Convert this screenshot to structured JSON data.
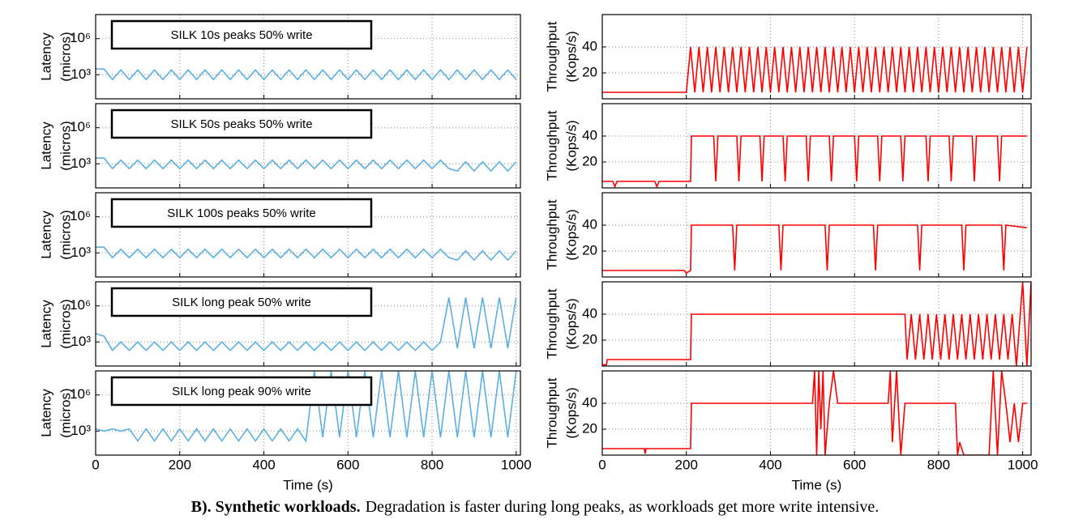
{
  "caption": {
    "bold": "B). Synthetic workloads.",
    "text": "Degradation is faster during long peaks, as workloads get more write intensive."
  },
  "chart_data": [
    {
      "type": "line",
      "title": "SILK 10s peaks 50% write",
      "ylabel": [
        "Latency",
        "(micros)"
      ],
      "color": "#5aafe3",
      "log": true,
      "grid": true,
      "xlim": [
        0,
        1010
      ],
      "xticks": [
        0,
        200,
        400,
        600,
        800,
        1000
      ],
      "ylim": [
        10,
        100000000
      ],
      "yticks": [
        {
          "value": 1000,
          "label": "10³"
        },
        {
          "value": 1000000,
          "label": "10⁶"
        }
      ],
      "x": [
        0,
        20,
        40,
        60,
        80,
        100,
        120,
        140,
        160,
        180,
        200,
        220,
        240,
        260,
        280,
        300,
        320,
        340,
        360,
        380,
        400,
        420,
        440,
        460,
        480,
        500,
        520,
        540,
        560,
        580,
        600,
        620,
        640,
        660,
        680,
        700,
        720,
        740,
        760,
        780,
        800,
        820,
        840,
        860,
        880,
        900,
        920,
        940,
        960,
        980,
        1000
      ],
      "values": [
        3000,
        3000,
        400,
        2500,
        400,
        2500,
        400,
        2500,
        400,
        2500,
        400,
        2500,
        400,
        2500,
        400,
        2500,
        400,
        2500,
        400,
        2500,
        400,
        2500,
        400,
        2500,
        400,
        2500,
        400,
        2500,
        400,
        2500,
        400,
        2500,
        400,
        2500,
        400,
        2500,
        400,
        2500,
        400,
        2500,
        400,
        2500,
        400,
        2500,
        400,
        2500,
        400,
        2500,
        400,
        2500,
        400
      ]
    },
    {
      "type": "line",
      "title": "SILK 50s peaks 50% write",
      "ylabel": [
        "Latency",
        "(micros)"
      ],
      "color": "#5aafe3",
      "log": true,
      "grid": true,
      "xlim": [
        0,
        1010
      ],
      "xticks": [
        0,
        200,
        400,
        600,
        800,
        1000
      ],
      "ylim": [
        10,
        100000000
      ],
      "yticks": [
        {
          "value": 1000,
          "label": "10³"
        },
        {
          "value": 1000000,
          "label": "10⁶"
        }
      ],
      "x": [
        0,
        20,
        40,
        60,
        80,
        100,
        120,
        140,
        160,
        180,
        200,
        220,
        240,
        260,
        280,
        300,
        320,
        340,
        360,
        380,
        400,
        420,
        440,
        460,
        480,
        500,
        520,
        540,
        560,
        580,
        600,
        620,
        640,
        660,
        680,
        700,
        720,
        740,
        760,
        780,
        800,
        820,
        840,
        860,
        880,
        900,
        920,
        940,
        960,
        980,
        1000
      ],
      "values": [
        3000,
        3000,
        400,
        2000,
        400,
        2000,
        400,
        2000,
        400,
        2000,
        400,
        2000,
        400,
        2000,
        400,
        2000,
        400,
        2000,
        400,
        2000,
        400,
        2000,
        400,
        2000,
        400,
        2000,
        400,
        2000,
        400,
        2000,
        400,
        2000,
        400,
        2000,
        400,
        2000,
        400,
        2000,
        400,
        2000,
        400,
        2000,
        400,
        250,
        1500,
        250,
        1500,
        250,
        1500,
        250,
        1500
      ]
    },
    {
      "type": "line",
      "title": "SILK 100s peaks 50% write",
      "ylabel": [
        "Latency",
        "(micros)"
      ],
      "color": "#5aafe3",
      "log": true,
      "grid": true,
      "xlim": [
        0,
        1010
      ],
      "xticks": [
        0,
        200,
        400,
        600,
        800,
        1000
      ],
      "ylim": [
        10,
        100000000
      ],
      "yticks": [
        {
          "value": 1000,
          "label": "10³"
        },
        {
          "value": 1000000,
          "label": "10⁶"
        }
      ],
      "x": [
        0,
        20,
        40,
        60,
        80,
        100,
        120,
        140,
        160,
        180,
        200,
        220,
        240,
        260,
        280,
        300,
        320,
        340,
        360,
        380,
        400,
        420,
        440,
        460,
        480,
        500,
        520,
        540,
        560,
        580,
        600,
        620,
        640,
        660,
        680,
        700,
        720,
        740,
        760,
        780,
        800,
        820,
        840,
        860,
        880,
        900,
        920,
        940,
        960,
        980,
        1000
      ],
      "values": [
        3000,
        3000,
        400,
        2000,
        400,
        2000,
        400,
        2000,
        400,
        2000,
        400,
        2000,
        400,
        2000,
        400,
        2000,
        400,
        2000,
        400,
        2000,
        400,
        2000,
        400,
        2000,
        400,
        2000,
        400,
        2000,
        400,
        2000,
        400,
        2000,
        400,
        2000,
        400,
        2000,
        400,
        2000,
        400,
        2000,
        400,
        2000,
        400,
        250,
        1500,
        250,
        1500,
        250,
        1500,
        250,
        1500
      ]
    },
    {
      "type": "line",
      "title": "SILK long peak 50% write",
      "ylabel": [
        "Latency",
        "(micros)"
      ],
      "color": "#5aafe3",
      "log": true,
      "grid": true,
      "xlim": [
        0,
        1010
      ],
      "xticks": [
        0,
        200,
        400,
        600,
        800,
        1000
      ],
      "ylim": [
        10,
        100000000
      ],
      "yticks": [
        {
          "value": 1000,
          "label": "10³"
        },
        {
          "value": 1000000,
          "label": "10⁶"
        }
      ],
      "x": [
        0,
        20,
        40,
        60,
        80,
        100,
        120,
        140,
        160,
        180,
        200,
        220,
        240,
        260,
        280,
        300,
        320,
        340,
        360,
        380,
        400,
        420,
        440,
        460,
        480,
        500,
        520,
        540,
        560,
        580,
        600,
        620,
        640,
        660,
        680,
        700,
        720,
        740,
        760,
        780,
        800,
        820,
        840,
        860,
        880,
        900,
        920,
        940,
        960,
        980,
        1000
      ],
      "values": [
        5000,
        3000,
        200,
        1000,
        200,
        1000,
        200,
        1000,
        200,
        1000,
        200,
        1000,
        200,
        1000,
        200,
        1000,
        200,
        1000,
        200,
        1000,
        200,
        1000,
        200,
        1000,
        200,
        1000,
        200,
        1000,
        200,
        1000,
        200,
        1000,
        200,
        1000,
        200,
        1000,
        200,
        1000,
        200,
        1000,
        200,
        1000,
        5000000,
        300,
        5000000,
        300,
        5000000,
        300,
        5000000,
        300,
        5000000
      ]
    },
    {
      "type": "line",
      "title": "SILK long peak 90% write",
      "ylabel": [
        "Latency",
        "(micros)"
      ],
      "xlabel": "Time (s)",
      "color": "#5aafe3",
      "log": true,
      "grid": true,
      "xlim": [
        0,
        1010
      ],
      "xticks": [
        0,
        200,
        400,
        600,
        800,
        1000
      ],
      "ylim": [
        10,
        100000000
      ],
      "yticks": [
        {
          "value": 1000,
          "label": "10³"
        },
        {
          "value": 1000000,
          "label": "10⁶"
        }
      ],
      "x": [
        0,
        20,
        40,
        60,
        80,
        100,
        120,
        140,
        160,
        180,
        200,
        220,
        240,
        260,
        280,
        300,
        320,
        340,
        360,
        380,
        400,
        420,
        440,
        460,
        480,
        500,
        520,
        540,
        560,
        580,
        600,
        620,
        640,
        660,
        680,
        700,
        720,
        740,
        760,
        780,
        800,
        820,
        840,
        860,
        880,
        900,
        920,
        940,
        960,
        980,
        1000
      ],
      "values": [
        1500,
        1000,
        1500,
        1000,
        1500,
        150,
        1500,
        150,
        1500,
        150,
        1500,
        150,
        1500,
        150,
        1500,
        150,
        1500,
        150,
        1500,
        150,
        1500,
        150,
        1500,
        150,
        1500,
        150,
        100000000,
        300,
        100000000,
        300,
        100000000,
        300,
        100000000,
        300,
        100000000,
        300,
        100000000,
        300,
        100000000,
        300,
        100000000,
        300,
        100000000,
        300,
        100000000,
        300,
        100000000,
        300,
        100000000,
        300,
        100000000
      ]
    },
    {
      "type": "line",
      "ylabel": [
        "Throughput",
        "(Kops/s)"
      ],
      "color": "#ff0000",
      "grid": true,
      "xlim": [
        0,
        1020
      ],
      "xticks": [
        0,
        200,
        400,
        600,
        800,
        1000
      ],
      "ylim": [
        0,
        65
      ],
      "yticks": [
        20,
        40
      ],
      "x": [
        0,
        200,
        210,
        220,
        230,
        240,
        250,
        260,
        270,
        280,
        290,
        300,
        310,
        320,
        330,
        340,
        350,
        360,
        370,
        380,
        390,
        400,
        410,
        420,
        430,
        440,
        450,
        460,
        470,
        480,
        490,
        500,
        510,
        520,
        530,
        540,
        550,
        560,
        570,
        580,
        590,
        600,
        610,
        620,
        630,
        640,
        650,
        660,
        670,
        680,
        690,
        700,
        710,
        720,
        730,
        740,
        750,
        760,
        770,
        780,
        790,
        800,
        810,
        820,
        830,
        840,
        850,
        860,
        870,
        880,
        890,
        900,
        910,
        920,
        930,
        940,
        950,
        960,
        970,
        980,
        990,
        1000,
        1010
      ],
      "values": [
        5,
        5,
        40,
        5,
        40,
        5,
        40,
        5,
        40,
        5,
        40,
        5,
        40,
        5,
        40,
        5,
        40,
        5,
        40,
        5,
        40,
        5,
        40,
        5,
        40,
        5,
        40,
        5,
        40,
        5,
        40,
        5,
        40,
        5,
        40,
        5,
        40,
        5,
        40,
        5,
        40,
        5,
        40,
        5,
        40,
        5,
        40,
        5,
        40,
        5,
        40,
        5,
        40,
        5,
        40,
        5,
        40,
        5,
        40,
        5,
        40,
        5,
        40,
        5,
        40,
        5,
        40,
        5,
        40,
        5,
        40,
        5,
        40,
        5,
        40,
        5,
        40,
        5,
        40,
        5,
        40,
        5,
        40
      ]
    },
    {
      "type": "line",
      "ylabel": [
        "Throughput",
        "(Kops/s)"
      ],
      "color": "#ff0000",
      "grid": true,
      "xlim": [
        0,
        1020
      ],
      "xticks": [
        0,
        200,
        400,
        600,
        800,
        1000
      ],
      "ylim": [
        0,
        65
      ],
      "yticks": [
        20,
        40
      ],
      "x": [
        0,
        25,
        30,
        35,
        125,
        130,
        135,
        210,
        212,
        265,
        270,
        275,
        320,
        325,
        330,
        375,
        380,
        385,
        430,
        435,
        440,
        485,
        490,
        495,
        540,
        545,
        550,
        600,
        605,
        610,
        655,
        660,
        665,
        710,
        715,
        720,
        770,
        775,
        780,
        825,
        830,
        835,
        880,
        885,
        890,
        940,
        945,
        950,
        1010
      ],
      "values": [
        5,
        5,
        1,
        5,
        5,
        1,
        5,
        5,
        40,
        40,
        5,
        40,
        40,
        5,
        40,
        40,
        5,
        40,
        40,
        5,
        40,
        40,
        5,
        40,
        40,
        5,
        40,
        40,
        5,
        40,
        40,
        5,
        40,
        40,
        5,
        40,
        40,
        5,
        40,
        40,
        5,
        40,
        40,
        5,
        40,
        40,
        5,
        40,
        40
      ]
    },
    {
      "type": "line",
      "ylabel": [
        "Throughput",
        "(Kops/s)"
      ],
      "color": "#ff0000",
      "grid": true,
      "xlim": [
        0,
        1020
      ],
      "xticks": [
        0,
        200,
        400,
        600,
        800,
        1000
      ],
      "ylim": [
        0,
        65
      ],
      "yticks": [
        20,
        40
      ],
      "x": [
        0,
        195,
        200,
        210,
        212,
        310,
        315,
        320,
        420,
        425,
        430,
        530,
        535,
        540,
        645,
        650,
        655,
        750,
        755,
        760,
        855,
        860,
        865,
        950,
        955,
        960,
        1010
      ],
      "values": [
        5,
        5,
        3,
        5,
        40,
        40,
        5,
        40,
        40,
        5,
        40,
        40,
        5,
        40,
        40,
        5,
        40,
        40,
        5,
        40,
        40,
        5,
        40,
        40,
        5,
        40,
        38
      ]
    },
    {
      "type": "line",
      "ylabel": [
        "Throughput",
        "(Kops/s)"
      ],
      "color": "#ff0000",
      "grid": true,
      "xlim": [
        0,
        1020
      ],
      "xticks": [
        0,
        200,
        400,
        600,
        800,
        1000
      ],
      "ylim": [
        0,
        65
      ],
      "yticks": [
        20,
        40
      ],
      "x": [
        0,
        10,
        12,
        210,
        212,
        720,
        725,
        735,
        745,
        755,
        765,
        775,
        785,
        795,
        805,
        815,
        825,
        835,
        845,
        855,
        865,
        875,
        885,
        895,
        905,
        915,
        925,
        935,
        945,
        955,
        965,
        975,
        985,
        1000,
        1010,
        1020
      ],
      "values": [
        1,
        1,
        5,
        5,
        40,
        40,
        5,
        40,
        5,
        40,
        5,
        40,
        5,
        40,
        5,
        40,
        5,
        40,
        5,
        40,
        5,
        40,
        5,
        40,
        5,
        40,
        5,
        40,
        5,
        40,
        5,
        40,
        0,
        65,
        0,
        65
      ]
    },
    {
      "type": "line",
      "ylabel": [
        "Throughput",
        "(Kops/s)"
      ],
      "xlabel": "Time (s)",
      "color": "#ff0000",
      "grid": true,
      "xlim": [
        0,
        1020
      ],
      "xticks": [
        0,
        200,
        400,
        600,
        800,
        1000
      ],
      "ylim": [
        0,
        65
      ],
      "yticks": [
        20,
        40
      ],
      "x": [
        0,
        100,
        102,
        104,
        210,
        212,
        500,
        505,
        510,
        515,
        520,
        525,
        530,
        540,
        550,
        560,
        680,
        685,
        690,
        700,
        710,
        720,
        840,
        845,
        850,
        860,
        870,
        900,
        920,
        930,
        940,
        950,
        960,
        970,
        980,
        990,
        1000,
        1010
      ],
      "values": [
        5,
        5,
        1,
        5,
        5,
        40,
        40,
        65,
        0,
        65,
        20,
        65,
        0,
        40,
        65,
        40,
        40,
        65,
        10,
        65,
        0,
        40,
        40,
        0,
        10,
        0,
        0,
        0,
        0,
        65,
        0,
        65,
        40,
        10,
        40,
        10,
        40,
        40
      ]
    }
  ]
}
